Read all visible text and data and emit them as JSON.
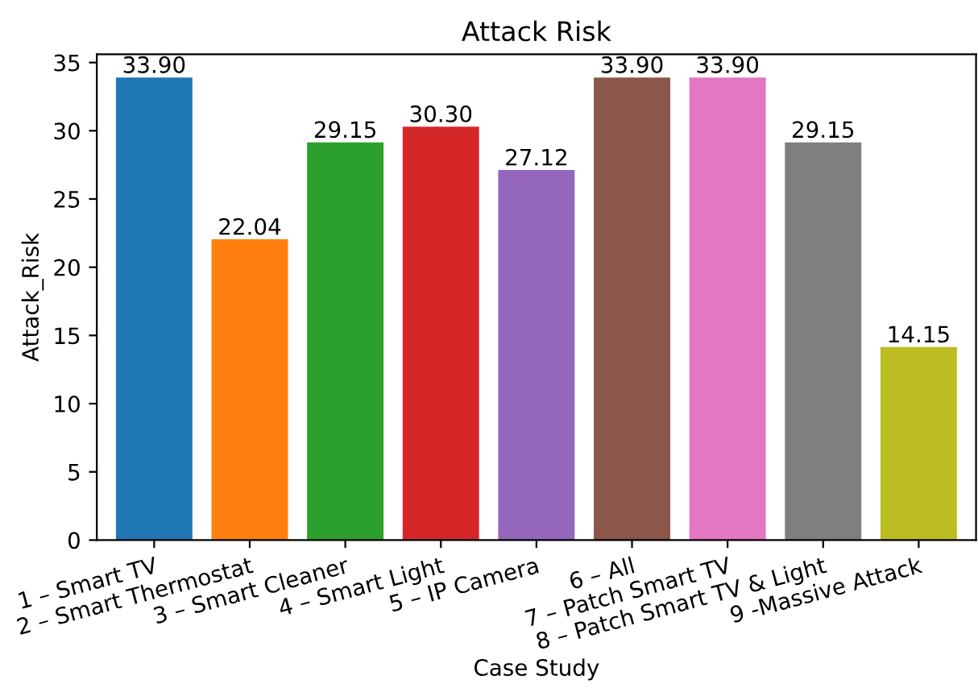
{
  "chart_data": {
    "type": "bar",
    "title": "Attack Risk",
    "xlabel": "Case Study",
    "ylabel": "Attack_Risk",
    "categories": [
      "1 – Smart TV",
      "2 – Smart Thermostat",
      "3 – Smart Cleaner",
      "4 – Smart Light",
      "5 – IP Camera",
      "6 – All",
      "7 – Patch Smart TV",
      "8 – Patch Smart TV & Light",
      "9 -Massive Attack"
    ],
    "values": [
      33.9,
      22.04,
      29.15,
      30.3,
      27.12,
      33.9,
      33.9,
      29.15,
      14.15
    ],
    "value_labels": [
      "33.90",
      "22.04",
      "29.15",
      "30.30",
      "27.12",
      "33.90",
      "33.90",
      "29.15",
      "14.15"
    ],
    "colors": [
      "#1f77b4",
      "#ff7f0e",
      "#2ca02c",
      "#d62728",
      "#9467bd",
      "#8c564b",
      "#e377c2",
      "#7f7f7f",
      "#bcbd22"
    ],
    "ylim": [
      0,
      35.6
    ],
    "yticks": [
      0,
      5,
      10,
      15,
      20,
      25,
      30,
      35
    ],
    "grid": false
  }
}
